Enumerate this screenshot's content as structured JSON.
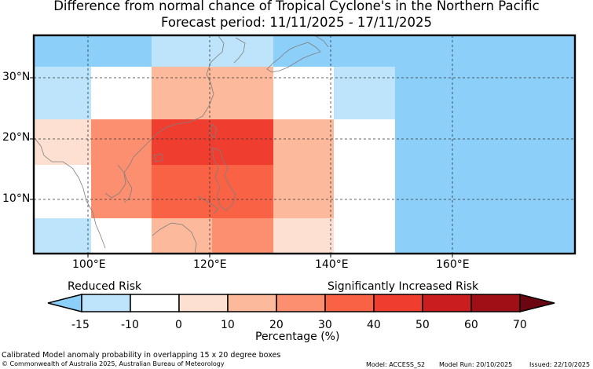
{
  "title_line1": "Difference from normal chance of Tropical Cyclone's in the Northern Pacific",
  "title_line2": "Forecast period: 11/11/2025 - 17/11/2025",
  "map": {
    "lat_labels": [
      "30°N",
      "20°N",
      "10°N"
    ],
    "lon_labels": [
      "100°E",
      "120°E",
      "140°E",
      "160°E"
    ],
    "palette": {
      "lt-15": "#8ccff9",
      "-15to-10": "#bde4fb",
      "-10to0": "#ffffff",
      "0to10": "#fee0d3",
      "10to20": "#fcb99b",
      "20to30": "#fc8f6f",
      "30to40": "#f96244",
      "40to50": "#ef3e30",
      "50to60": "#c91d20",
      "60to70": "#a10f16",
      "gt70": "#6b0510"
    },
    "grid_rows": [
      [
        "lt-15",
        "lt-15",
        "-15to-10",
        "-15to-10",
        "lt-15",
        "lt-15",
        "lt-15",
        "lt-15",
        "lt-15"
      ],
      [
        "-15to-10",
        "-10to0",
        "10to20",
        "10to20",
        "-10to0",
        "-15to-10",
        "lt-15",
        "lt-15",
        "lt-15"
      ],
      [
        "0to10",
        "20to30",
        "40to50",
        "40to50",
        "10to20",
        "-10to0",
        "lt-15",
        "lt-15",
        "lt-15"
      ],
      [
        "-10to0",
        "20to30",
        "30to40",
        "30to40",
        "10to20",
        "-10to0",
        "lt-15",
        "lt-15",
        "lt-15"
      ],
      [
        "-15to-10",
        "-10to0",
        "10to20",
        "20to30",
        "0to10",
        "-10to0",
        "lt-15",
        "lt-15",
        "lt-15"
      ]
    ]
  },
  "colorbar": {
    "left_label": "Reduced Risk",
    "right_label": "Significantly Increased Risk",
    "ticks": [
      "-15",
      "-10",
      "0",
      "10",
      "20",
      "30",
      "40",
      "50",
      "60",
      "70"
    ],
    "xlabel": "Percentage (%)"
  },
  "footer": {
    "note": "Calibrated Model anomaly probability in overlapping 15 x 20 degree boxes",
    "copyright": "© Commonwealth of Australia 2025, Australian Bureau of Meteorology",
    "model": "Model: ACCESS_S2",
    "model_run": "Model Run: 20/10/2025",
    "issued": "Issued: 22/10/2025"
  }
}
